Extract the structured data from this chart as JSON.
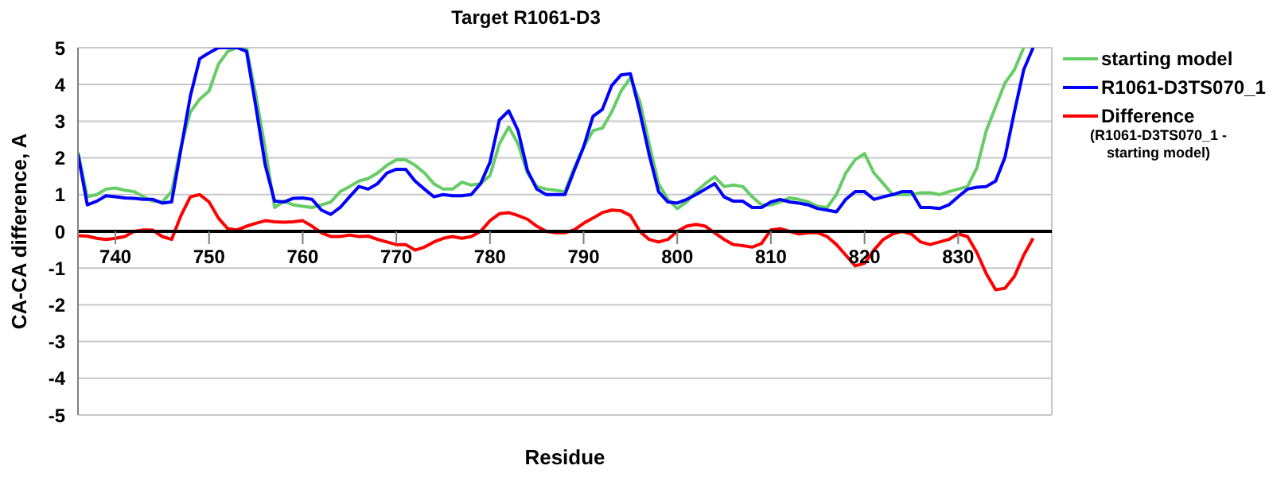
{
  "chart_data": {
    "type": "line",
    "title": "Target R1061-D3",
    "xlabel": "Residue",
    "ylabel": "CA-CA difference, A",
    "x": [
      736,
      737,
      738,
      739,
      740,
      741,
      742,
      743,
      744,
      745,
      746,
      747,
      748,
      749,
      750,
      751,
      752,
      753,
      754,
      755,
      756,
      757,
      758,
      759,
      760,
      761,
      762,
      763,
      764,
      765,
      766,
      767,
      768,
      769,
      770,
      771,
      772,
      773,
      774,
      775,
      776,
      777,
      778,
      779,
      780,
      781,
      782,
      783,
      784,
      785,
      786,
      787,
      788,
      789,
      790,
      791,
      792,
      793,
      794,
      795,
      796,
      797,
      798,
      799,
      800,
      801,
      802,
      803,
      804,
      805,
      806,
      807,
      808,
      809,
      810,
      811,
      812,
      813,
      814,
      815,
      816,
      817,
      818,
      819,
      820,
      821,
      822,
      823,
      824,
      825,
      826,
      827,
      828,
      829,
      830,
      831,
      832,
      833,
      834,
      835,
      836,
      837,
      838
    ],
    "series": [
      {
        "name": "starting model",
        "color": "#66cc66",
        "values": [
          2.16,
          0.94,
          1.0,
          1.15,
          1.18,
          1.12,
          1.08,
          0.94,
          0.82,
          0.8,
          1.08,
          2.3,
          3.25,
          3.6,
          3.82,
          4.55,
          4.9,
          5,
          5,
          3.7,
          2.24,
          0.65,
          0.82,
          0.72,
          0.68,
          0.65,
          0.72,
          0.8,
          1.08,
          1.22,
          1.37,
          1.44,
          1.59,
          1.8,
          1.95,
          1.95,
          1.8,
          1.59,
          1.3,
          1.15,
          1.15,
          1.34,
          1.26,
          1.3,
          1.52,
          2.38,
          2.84,
          2.38,
          1.59,
          1.22,
          1.15,
          1.12,
          1.08,
          1.73,
          2.3,
          2.74,
          2.81,
          3.25,
          3.82,
          4.18,
          3.54,
          2.38,
          1.3,
          0.87,
          0.62,
          0.8,
          1.08,
          1.3,
          1.49,
          1.22,
          1.26,
          1.22,
          0.94,
          0.72,
          0.72,
          0.8,
          0.91,
          0.87,
          0.8,
          0.68,
          0.65,
          1.0,
          1.59,
          1.95,
          2.12,
          1.59,
          1.3,
          1.0,
          1.0,
          1.0,
          1.05,
          1.05,
          1.0,
          1.08,
          1.15,
          1.22,
          1.73,
          2.74,
          3.39,
          4.04,
          4.4,
          5,
          null
        ]
      },
      {
        "name": "R1061-D3TS070_1",
        "color": "#0000ff",
        "values": [
          2.1,
          0.72,
          0.82,
          0.97,
          0.94,
          0.91,
          0.9,
          0.87,
          0.87,
          0.77,
          0.8,
          2.24,
          3.68,
          4.7,
          4.86,
          5,
          5,
          5,
          4.9,
          3.39,
          1.8,
          0.82,
          0.8,
          0.9,
          0.91,
          0.87,
          0.58,
          0.46,
          0.65,
          0.94,
          1.22,
          1.15,
          1.3,
          1.59,
          1.69,
          1.69,
          1.37,
          1.15,
          0.94,
          1.0,
          0.97,
          0.97,
          1.0,
          1.3,
          1.88,
          3.03,
          3.28,
          2.74,
          1.66,
          1.15,
          1.0,
          1.0,
          1.0,
          1.66,
          2.3,
          3.13,
          3.32,
          3.97,
          4.26,
          4.29,
          3.25,
          2.09,
          1.08,
          0.8,
          0.77,
          0.87,
          1.0,
          1.15,
          1.3,
          0.94,
          0.82,
          0.82,
          0.65,
          0.65,
          0.8,
          0.87,
          0.8,
          0.77,
          0.72,
          0.62,
          0.58,
          0.53,
          0.87,
          1.08,
          1.08,
          0.87,
          0.94,
          1.0,
          1.08,
          1.08,
          0.65,
          0.65,
          0.62,
          0.72,
          0.94,
          1.15,
          1.2,
          1.22,
          1.37,
          2.02,
          3.25,
          4.4,
          5
        ]
      },
      {
        "name": "Difference (R1061-D3TS070_1 - starting model)",
        "color": "#ff0000",
        "values": [
          -0.12,
          -0.13,
          -0.19,
          -0.22,
          -0.19,
          -0.14,
          0,
          0.04,
          0.03,
          -0.14,
          -0.22,
          0.43,
          0.94,
          1.0,
          0.8,
          0.36,
          0.07,
          0.04,
          0.14,
          0.22,
          0.29,
          0.26,
          0.25,
          0.26,
          0.29,
          0.14,
          -0.04,
          -0.14,
          -0.14,
          -0.1,
          -0.14,
          -0.13,
          -0.22,
          -0.29,
          -0.36,
          -0.36,
          -0.51,
          -0.43,
          -0.29,
          -0.19,
          -0.14,
          -0.19,
          -0.14,
          0,
          0.29,
          0.48,
          0.51,
          0.43,
          0.33,
          0.14,
          0,
          -0.04,
          -0.04,
          0.04,
          0.22,
          0.36,
          0.51,
          0.58,
          0.56,
          0.43,
          0,
          -0.22,
          -0.29,
          -0.22,
          0,
          0.14,
          0.19,
          0.14,
          -0.04,
          -0.22,
          -0.36,
          -0.39,
          -0.43,
          -0.33,
          0.04,
          0.07,
          0,
          -0.07,
          -0.04,
          -0.04,
          -0.14,
          -0.36,
          -0.65,
          -0.94,
          -0.87,
          -0.51,
          -0.22,
          -0.07,
          0,
          -0.07,
          -0.29,
          -0.36,
          -0.29,
          -0.22,
          -0.07,
          -0.14,
          -0.58,
          -1.15,
          -1.59,
          -1.55,
          -1.23,
          -0.65,
          -0.19
        ]
      }
    ],
    "xlim": [
      736,
      840
    ],
    "xticks": [
      740,
      750,
      760,
      770,
      780,
      790,
      800,
      810,
      820,
      830
    ],
    "ylim": [
      -5,
      5
    ],
    "yticks": [
      -5,
      -4,
      -3,
      -2,
      -1,
      0,
      1,
      2,
      3,
      4,
      5
    ],
    "grid": "y",
    "legend": "right",
    "line_style": "solid"
  }
}
